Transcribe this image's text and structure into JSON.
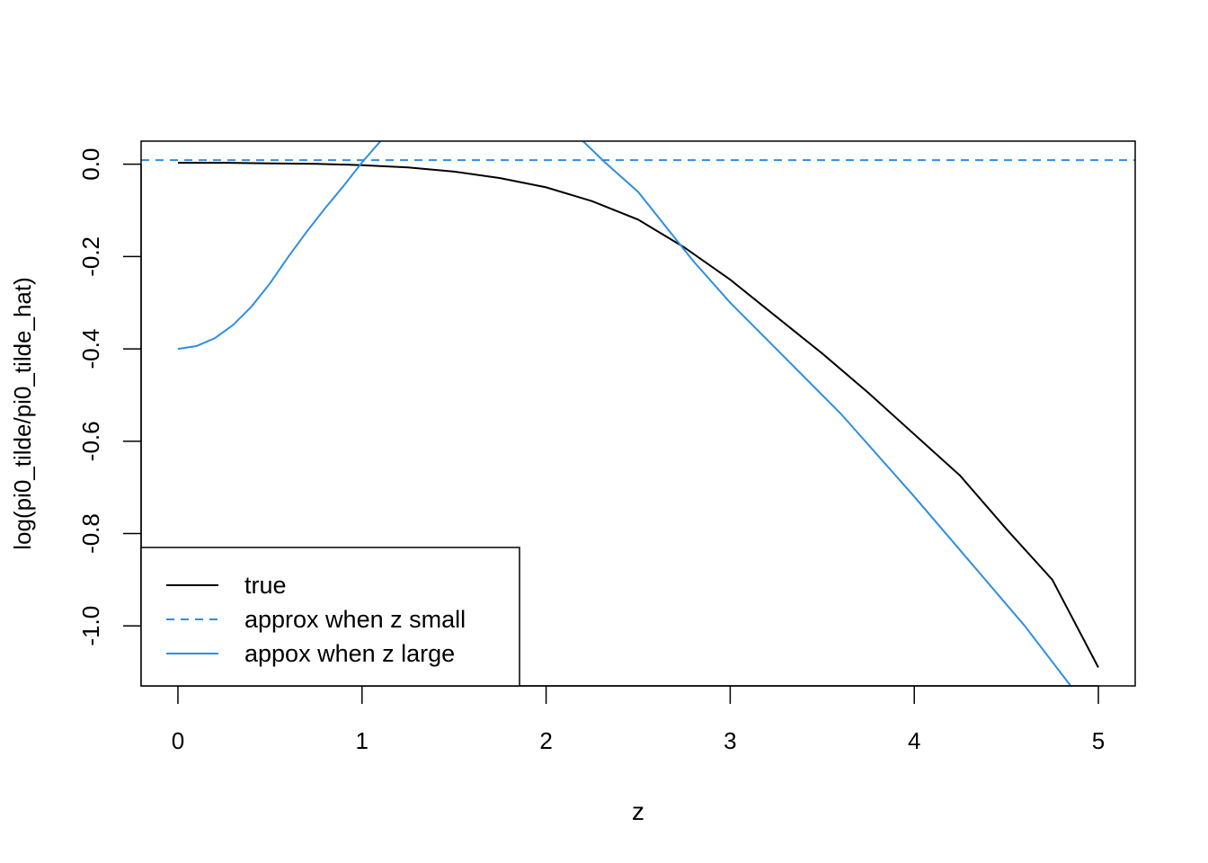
{
  "chart_data": {
    "type": "line",
    "title": "",
    "xlabel": "z",
    "ylabel": "log(pi0_tilde/pi0_tilde_hat)",
    "xlim": [
      -0.2,
      5.2
    ],
    "ylim": [
      -1.13,
      0.05
    ],
    "x_ticks": [
      0,
      1,
      2,
      3,
      4,
      5
    ],
    "x_tick_labels": [
      "0",
      "1",
      "2",
      "3",
      "4",
      "5"
    ],
    "y_ticks": [
      0.0,
      -0.2,
      -0.4,
      -0.6,
      -0.8,
      -1.0
    ],
    "y_tick_labels": [
      "0.0",
      "-0.2",
      "-0.4",
      "-0.6",
      "-0.8",
      "-1.0"
    ],
    "grid": false,
    "legend": {
      "position": "bottom-left",
      "entries": [
        {
          "label": "true",
          "color": "#000000",
          "dash": "solid"
        },
        {
          "label": "approx when z small",
          "color": "#2f8ee0",
          "dash": "dashed"
        },
        {
          "label": "appox when z large",
          "color": "#2f8ee0",
          "dash": "solid"
        }
      ]
    },
    "series": [
      {
        "name": "true",
        "color": "#000000",
        "dash": "solid",
        "x": [
          0,
          0.25,
          0.5,
          0.75,
          1.0,
          1.25,
          1.5,
          1.75,
          2.0,
          2.25,
          2.5,
          2.75,
          3.0,
          3.25,
          3.5,
          3.75,
          4.0,
          4.25,
          4.5,
          4.75,
          5.0
        ],
        "y": [
          0.003,
          0.003,
          0.002,
          0.001,
          -0.002,
          -0.007,
          -0.016,
          -0.03,
          -0.05,
          -0.08,
          -0.12,
          -0.18,
          -0.25,
          -0.33,
          -0.41,
          -0.495,
          -0.585,
          -0.675,
          -0.79,
          -0.9,
          -1.09
        ]
      },
      {
        "name": "approx when z small",
        "color": "#2f8ee0",
        "dash": "dashed",
        "x": [
          -0.2,
          5.2
        ],
        "y": [
          0.009,
          0.009
        ]
      },
      {
        "name": "appox when z large",
        "color": "#2f8ee0",
        "dash": "solid",
        "segments": [
          {
            "x": [
              0,
              0.1,
              0.2,
              0.3,
              0.4,
              0.5,
              0.6,
              0.7,
              0.8,
              0.9,
              1.0,
              1.1
            ],
            "y": [
              -0.4,
              -0.394,
              -0.377,
              -0.348,
              -0.308,
              -0.258,
              -0.2,
              -0.146,
              -0.095,
              -0.047,
              0.004,
              0.05
            ]
          },
          {
            "x": [
              2.2,
              2.32,
              2.5,
              2.8,
              3.0,
              3.3,
              3.6,
              4.0,
              4.3,
              4.6,
              4.85
            ],
            "y": [
              0.05,
              0.004,
              -0.06,
              -0.21,
              -0.3,
              -0.42,
              -0.54,
              -0.72,
              -0.86,
              -1.0,
              -1.13
            ]
          }
        ]
      }
    ]
  }
}
